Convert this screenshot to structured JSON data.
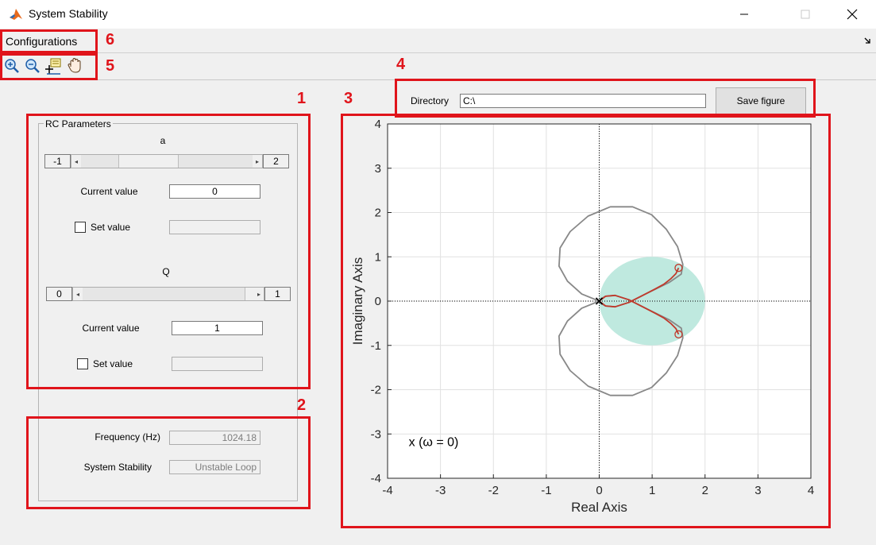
{
  "window": {
    "title": "System Stability"
  },
  "menu": {
    "items": [
      "Configurations"
    ]
  },
  "toolbar": {
    "icons": [
      "zoom-in-icon",
      "zoom-out-icon",
      "data-cursor-icon",
      "pan-hand-icon"
    ]
  },
  "panel": {
    "title": "RC Parameters",
    "a": {
      "label": "a",
      "min": "-1",
      "max": "2",
      "slider_fraction": 0.333,
      "current_label": "Current value",
      "current_value": "0",
      "set_label": "Set value",
      "set_value": ""
    },
    "q": {
      "label": "Q",
      "min": "0",
      "max": "1",
      "slider_fraction": 1.0,
      "current_label": "Current value",
      "current_value": "1",
      "set_label": "Set value",
      "set_value": ""
    },
    "frequency": {
      "label": "Frequency (Hz)",
      "value": "1024.18"
    },
    "stability": {
      "label": "System Stability",
      "value": "Unstable Loop"
    }
  },
  "directory": {
    "label": "Directory",
    "value": "C:\\",
    "save_label": "Save figure"
  },
  "annotations": [
    "1",
    "2",
    "3",
    "4",
    "5",
    "6"
  ],
  "colors": {
    "annotation": "#e0141b",
    "nyquist_full": "#888888",
    "nyquist_partial": "#c0392b",
    "disk": "#bfe9df",
    "window_bg": "#f0f0f0"
  },
  "chart_data": {
    "type": "line",
    "xlabel": "Real Axis",
    "ylabel": "Imaginary Axis",
    "xlim": [
      -4,
      4
    ],
    "ylim": [
      -4,
      4
    ],
    "xticks": [
      -4,
      -3,
      -2,
      -1,
      0,
      1,
      2,
      3,
      4
    ],
    "yticks": [
      -4,
      -3,
      -2,
      -1,
      0,
      1,
      2,
      3,
      4
    ],
    "grid": true,
    "annotation": "x (ω = 0)",
    "disk": {
      "center": [
        1,
        0
      ],
      "radius": 1
    },
    "start_marker": [
      0,
      0
    ],
    "end_markers": [
      [
        1.5,
        0.75
      ],
      [
        1.5,
        -0.75
      ]
    ],
    "series": [
      {
        "x": [
          0,
          -0.33,
          -0.6,
          -0.76,
          -0.74,
          -0.55,
          -0.21,
          0.21,
          0.63,
          0.99,
          1.27,
          1.48,
          1.58,
          1.55,
          1.32,
          0.84,
          0.56,
          0.3,
          0.12,
          0.03,
          0
        ],
        "y": [
          0,
          0.16,
          0.45,
          0.79,
          1.2,
          1.57,
          1.92,
          2.13,
          2.13,
          1.95,
          1.62,
          1.23,
          0.83,
          0.61,
          0.42,
          0.14,
          -0.03,
          -0.13,
          -0.11,
          -0.05,
          0
        ]
      },
      {
        "x": [
          0,
          -0.33,
          -0.6,
          -0.76,
          -0.74,
          -0.55,
          -0.21,
          0.21,
          0.63,
          0.99,
          1.27,
          1.48,
          1.58,
          1.55,
          1.32,
          0.84,
          0.56,
          0.3,
          0.12,
          0.03,
          0
        ],
        "y": [
          0,
          -0.16,
          -0.45,
          -0.79,
          -1.2,
          -1.57,
          -1.92,
          -2.13,
          -2.13,
          -1.95,
          -1.62,
          -1.23,
          -0.83,
          -0.61,
          -0.42,
          -0.14,
          0.03,
          0.13,
          0.11,
          0.05,
          0
        ]
      },
      {
        "x": [
          0,
          0.12,
          0.3,
          0.56,
          0.84,
          1.05,
          1.22,
          1.35,
          1.45,
          1.5
        ],
        "y": [
          0,
          0.11,
          0.13,
          0.03,
          -0.14,
          -0.27,
          -0.38,
          -0.5,
          -0.62,
          -0.75
        ]
      },
      {
        "x": [
          0,
          0.12,
          0.3,
          0.56,
          0.84,
          1.05,
          1.22,
          1.35,
          1.45,
          1.5
        ],
        "y": [
          0,
          -0.11,
          -0.13,
          -0.03,
          0.14,
          0.27,
          0.38,
          0.5,
          0.62,
          0.75
        ]
      }
    ]
  }
}
